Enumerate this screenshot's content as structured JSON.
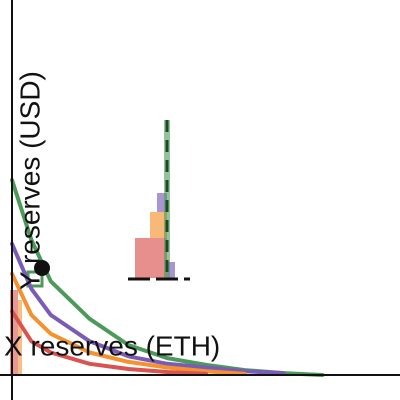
{
  "chart_data": {
    "type": "line",
    "x_label": "X reserves (ETH)",
    "y_label": "Y reserves (USD)",
    "xlim": [
      0,
      100
    ],
    "ylim": [
      0,
      100
    ],
    "xticks": [],
    "yticks": [],
    "grid": false,
    "x": [
      0,
      5,
      10,
      20,
      30,
      40,
      50,
      60,
      70,
      80
    ],
    "series": [
      {
        "name": null,
        "color": "#4c9a5a",
        "values": [
          52,
          36,
          25,
          15,
          8,
          4.5,
          2.7,
          1.3,
          0.5,
          0
        ]
      },
      {
        "name": null,
        "color": "#7a5cb8",
        "values": [
          35,
          23,
          16,
          9,
          5,
          3,
          2,
          1,
          0.5,
          null
        ]
      },
      {
        "name": null,
        "color": "#f5922e",
        "values": [
          27,
          16,
          11,
          6,
          3.5,
          2,
          1,
          0.3,
          null,
          null
        ]
      },
      {
        "name": null,
        "color": "#d9534f",
        "values": [
          17,
          9,
          6,
          3,
          1.6,
          0.8,
          0.3,
          null,
          null,
          null
        ]
      }
    ]
  }
}
